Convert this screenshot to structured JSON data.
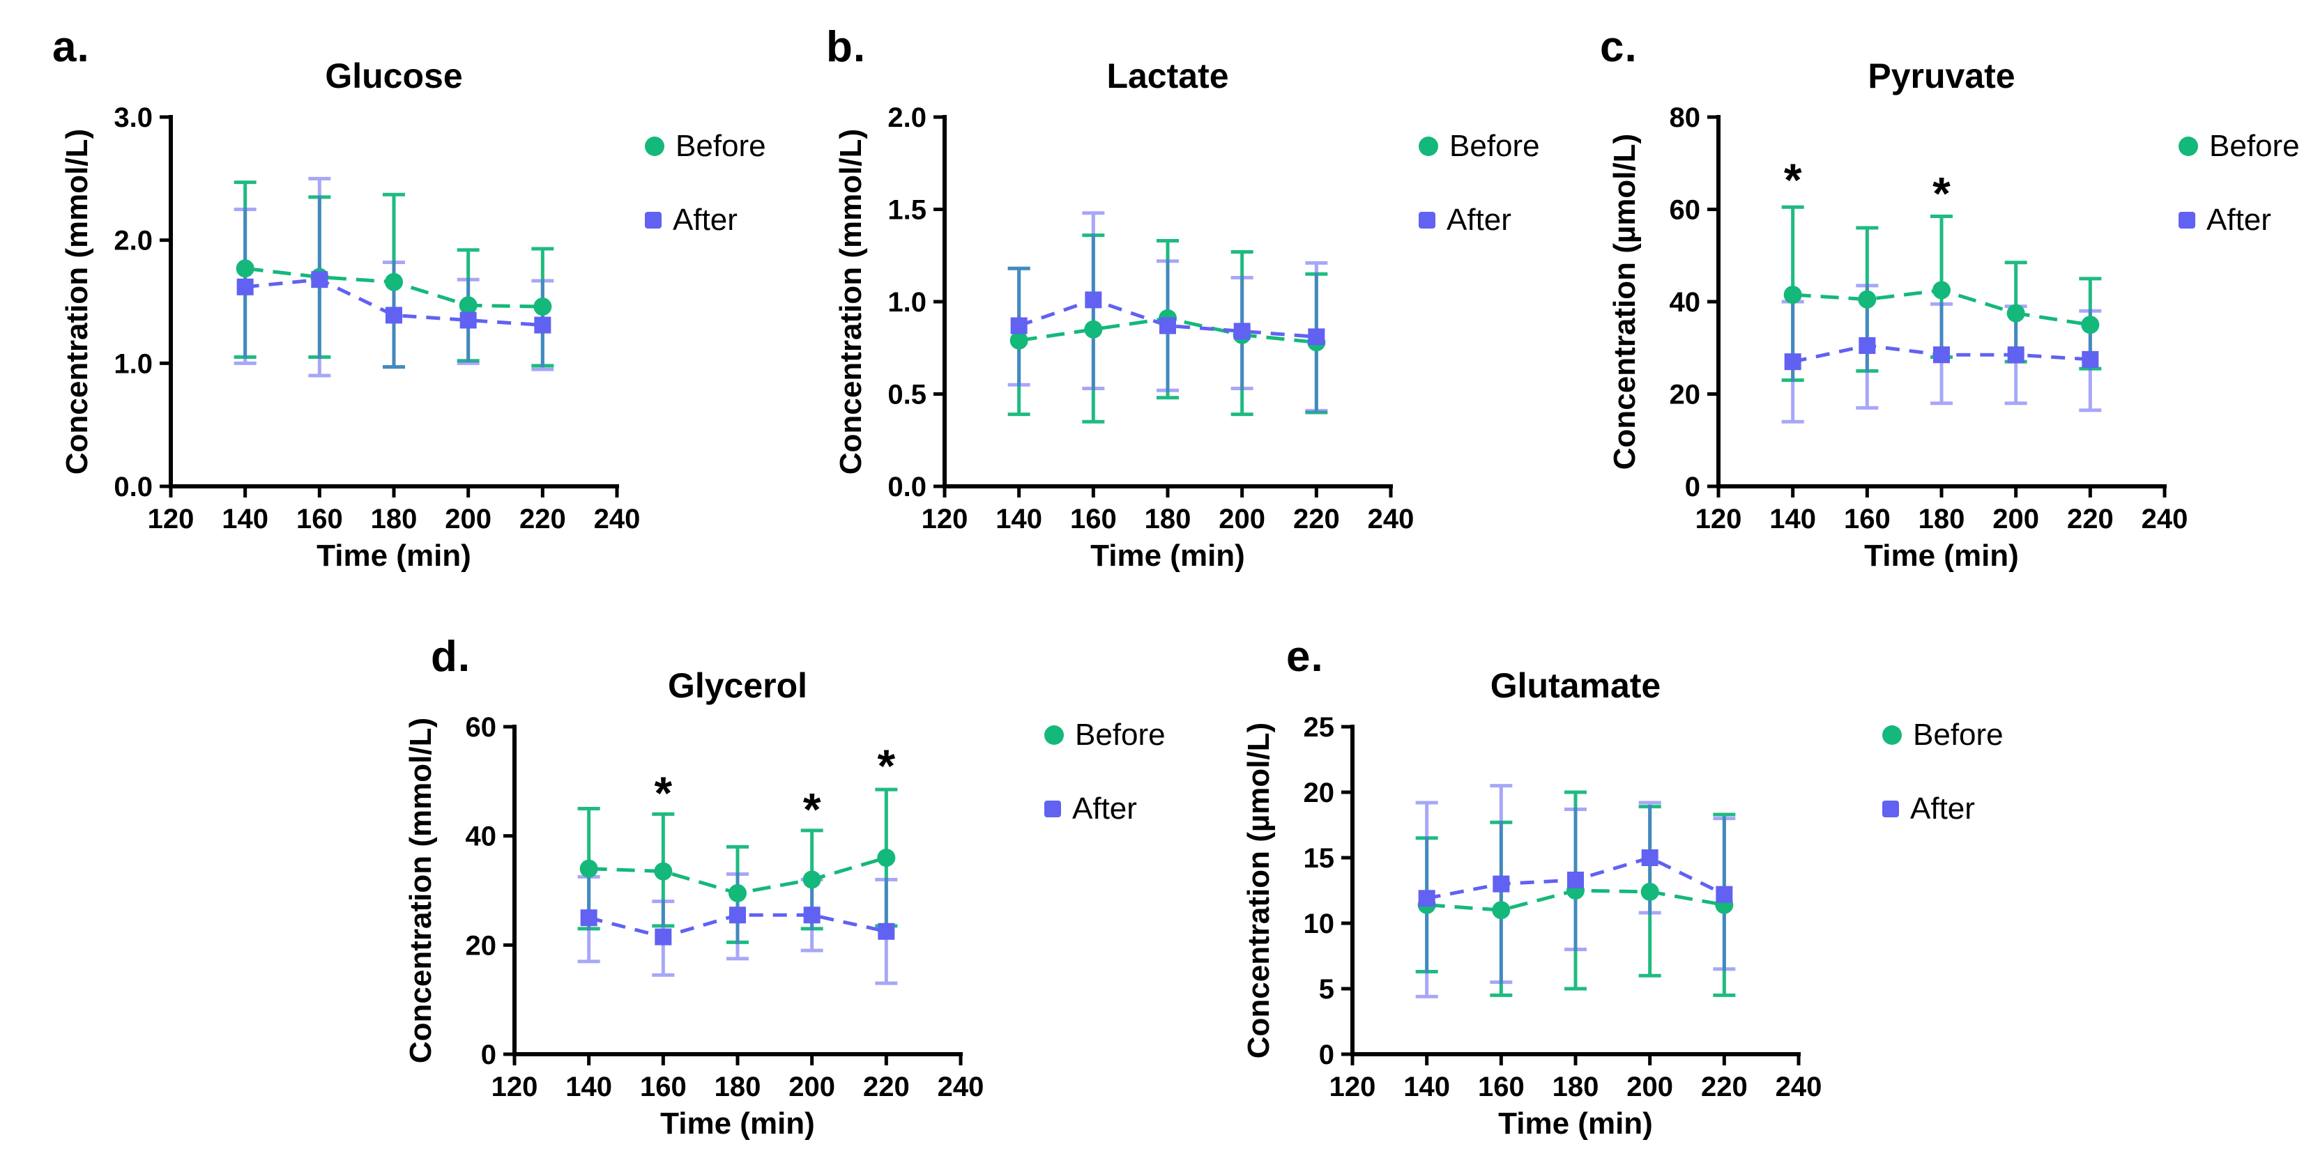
{
  "figure": {
    "background": "#ffffff"
  },
  "colors": {
    "before": "#14B87A",
    "after": "#6161F2",
    "axis": "#000000",
    "text": "#000000"
  },
  "legend": {
    "before_label": "Before",
    "after_label": "After",
    "position": "right"
  },
  "chart_data": [
    {
      "id": "glucose",
      "panel_label": "a.",
      "type": "line",
      "title": "Glucose",
      "xlabel": "Time (min)",
      "ylabel": "Concentration (mmol/L)",
      "xlim": [
        120,
        240
      ],
      "xticks": [
        120,
        140,
        160,
        180,
        200,
        220,
        240
      ],
      "ylim": [
        0,
        3
      ],
      "yticks": [
        0,
        1,
        2,
        3
      ],
      "ytick_labels": [
        "0.0",
        "1.0",
        "2.0",
        "3.0"
      ],
      "grid": false,
      "legend_position": "right",
      "x": [
        140,
        160,
        180,
        200,
        220
      ],
      "series": [
        {
          "name": "Before",
          "marker": "circle",
          "color_key": "before",
          "values": [
            1.77,
            1.7,
            1.66,
            1.47,
            1.46
          ],
          "err_lo": [
            1.05,
            1.05,
            0.97,
            1.02,
            0.98
          ],
          "err_hi": [
            2.47,
            2.35,
            2.37,
            1.92,
            1.93
          ]
        },
        {
          "name": "After",
          "marker": "square",
          "color_key": "after",
          "values": [
            1.62,
            1.68,
            1.39,
            1.35,
            1.31
          ],
          "err_lo": [
            1.0,
            0.9,
            0.97,
            1.0,
            0.95
          ],
          "err_hi": [
            2.25,
            2.5,
            1.82,
            1.68,
            1.67
          ]
        }
      ],
      "annotations": []
    },
    {
      "id": "lactate",
      "panel_label": "b.",
      "type": "line",
      "title": "Lactate",
      "xlabel": "Time (min)",
      "ylabel": "Concentration (mmol/L)",
      "xlim": [
        120,
        240
      ],
      "xticks": [
        120,
        140,
        160,
        180,
        200,
        220,
        240
      ],
      "ylim": [
        0,
        2
      ],
      "yticks": [
        0,
        0.5,
        1,
        1.5,
        2
      ],
      "ytick_labels": [
        "0.0",
        "0.5",
        "1.0",
        "1.5",
        "2.0"
      ],
      "grid": false,
      "legend_position": "right",
      "x": [
        140,
        160,
        180,
        200,
        220
      ],
      "series": [
        {
          "name": "Before",
          "marker": "circle",
          "color_key": "before",
          "values": [
            0.79,
            0.85,
            0.91,
            0.82,
            0.78
          ],
          "err_lo": [
            0.39,
            0.35,
            0.48,
            0.39,
            0.4
          ],
          "err_hi": [
            1.18,
            1.36,
            1.33,
            1.27,
            1.15
          ]
        },
        {
          "name": "After",
          "marker": "square",
          "color_key": "after",
          "values": [
            0.87,
            1.01,
            0.87,
            0.84,
            0.81
          ],
          "err_lo": [
            0.55,
            0.53,
            0.52,
            0.53,
            0.41
          ],
          "err_hi": [
            1.18,
            1.48,
            1.22,
            1.13,
            1.21
          ]
        }
      ],
      "annotations": []
    },
    {
      "id": "pyruvate",
      "panel_label": "c.",
      "type": "line",
      "title": "Pyruvate",
      "xlabel": "Time (min)",
      "ylabel": "Concentration (µmol/L)",
      "xlim": [
        120,
        240
      ],
      "xticks": [
        120,
        140,
        160,
        180,
        200,
        220,
        240
      ],
      "ylim": [
        0,
        80
      ],
      "yticks": [
        0,
        20,
        40,
        60,
        80
      ],
      "ytick_labels": [
        "0",
        "20",
        "40",
        "60",
        "80"
      ],
      "grid": false,
      "legend_position": "right",
      "x": [
        140,
        160,
        180,
        200,
        220
      ],
      "series": [
        {
          "name": "Before",
          "marker": "circle",
          "color_key": "before",
          "values": [
            41.5,
            40.5,
            42.5,
            37.5,
            35.0
          ],
          "err_lo": [
            23.0,
            25.0,
            28.0,
            27.0,
            25.5
          ],
          "err_hi": [
            60.5,
            56.0,
            58.5,
            48.5,
            45.0
          ]
        },
        {
          "name": "After",
          "marker": "square",
          "color_key": "after",
          "values": [
            27.0,
            30.5,
            28.5,
            28.5,
            27.5
          ],
          "err_lo": [
            14.0,
            17.0,
            18.0,
            18.0,
            16.5
          ],
          "err_hi": [
            40.0,
            43.5,
            39.5,
            39.0,
            38.0
          ]
        }
      ],
      "annotations": [
        {
          "x": 140,
          "y": 66,
          "text": "*"
        },
        {
          "x": 180,
          "y": 63,
          "text": "*"
        }
      ]
    },
    {
      "id": "glycerol",
      "panel_label": "d.",
      "type": "line",
      "title": "Glycerol",
      "xlabel": "Time (min)",
      "ylabel": "Concentration (mmol/L)",
      "xlim": [
        120,
        240
      ],
      "xticks": [
        120,
        140,
        160,
        180,
        200,
        220,
        240
      ],
      "ylim": [
        0,
        60
      ],
      "yticks": [
        0,
        20,
        40,
        60
      ],
      "ytick_labels": [
        "0",
        "20",
        "40",
        "60"
      ],
      "grid": false,
      "legend_position": "right",
      "x": [
        140,
        160,
        180,
        200,
        220
      ],
      "series": [
        {
          "name": "Before",
          "marker": "circle",
          "color_key": "before",
          "values": [
            34.0,
            33.5,
            29.5,
            32.0,
            36.0
          ],
          "err_lo": [
            23.0,
            23.5,
            20.5,
            23.0,
            23.5
          ],
          "err_hi": [
            45.0,
            44.0,
            38.0,
            41.0,
            48.5
          ]
        },
        {
          "name": "After",
          "marker": "square",
          "color_key": "after",
          "values": [
            25.0,
            21.5,
            25.5,
            25.5,
            22.5
          ],
          "err_lo": [
            17.0,
            14.5,
            17.5,
            19.0,
            13.0
          ],
          "err_hi": [
            32.5,
            28.0,
            33.0,
            32.0,
            32.0
          ]
        }
      ],
      "annotations": [
        {
          "x": 160,
          "y": 47.5,
          "text": "*"
        },
        {
          "x": 200,
          "y": 44.5,
          "text": "*"
        },
        {
          "x": 220,
          "y": 52.5,
          "text": "*"
        }
      ]
    },
    {
      "id": "glutamate",
      "panel_label": "e.",
      "type": "line",
      "title": "Glutamate",
      "xlabel": "Time (min)",
      "ylabel": "Concentration (µmol/L)",
      "xlim": [
        120,
        240
      ],
      "xticks": [
        120,
        140,
        160,
        180,
        200,
        220,
        240
      ],
      "ylim": [
        0,
        25
      ],
      "yticks": [
        0,
        5,
        10,
        15,
        20,
        25
      ],
      "ytick_labels": [
        "0",
        "5",
        "10",
        "15",
        "20",
        "25"
      ],
      "grid": false,
      "legend_position": "right",
      "x": [
        140,
        160,
        180,
        200,
        220
      ],
      "series": [
        {
          "name": "Before",
          "marker": "circle",
          "color_key": "before",
          "values": [
            11.4,
            11.0,
            12.5,
            12.4,
            11.4
          ],
          "err_lo": [
            6.3,
            4.5,
            5.0,
            6.0,
            4.5
          ],
          "err_hi": [
            16.5,
            17.7,
            20.0,
            18.9,
            18.3
          ]
        },
        {
          "name": "After",
          "marker": "square",
          "color_key": "after",
          "values": [
            11.9,
            13.0,
            13.3,
            15.0,
            12.2
          ],
          "err_lo": [
            4.4,
            5.5,
            8.0,
            10.8,
            6.5
          ],
          "err_hi": [
            19.2,
            20.5,
            18.7,
            19.2,
            18.0
          ]
        }
      ],
      "annotations": []
    }
  ]
}
